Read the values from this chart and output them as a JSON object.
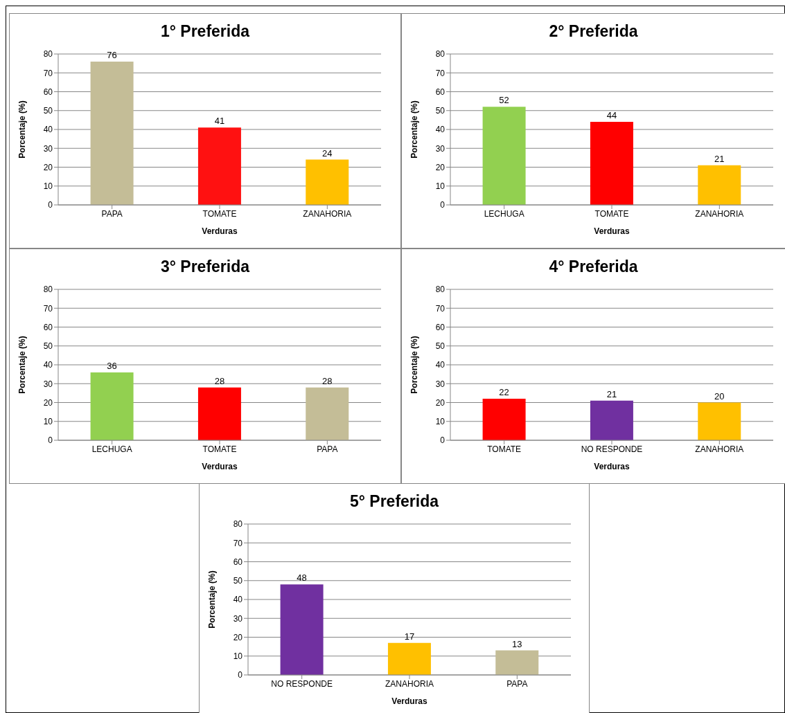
{
  "chart_data": [
    {
      "type": "bar",
      "title": "1° Preferida",
      "xlabel": "Verduras",
      "ylabel": "Porcentaje (%)",
      "categories": [
        "PAPA",
        "TOMATE",
        "ZANAHORIA"
      ],
      "values": [
        76,
        41,
        24
      ],
      "colors": [
        "#c4bd97",
        "#ff1111",
        "#ffc000"
      ],
      "ylim": [
        0,
        80
      ],
      "yticks": [
        0,
        10,
        20,
        30,
        40,
        50,
        60,
        70,
        80
      ],
      "grid": "y",
      "data_labels": true
    },
    {
      "type": "bar",
      "title": "2° Preferida",
      "xlabel": "Verduras",
      "ylabel": "Porcentaje (%)",
      "categories": [
        "LECHUGA",
        "TOMATE",
        "ZANAHORIA"
      ],
      "values": [
        52,
        44,
        21
      ],
      "colors": [
        "#92d050",
        "#ff0000",
        "#ffc000"
      ],
      "ylim": [
        0,
        80
      ],
      "yticks": [
        0,
        10,
        20,
        30,
        40,
        50,
        60,
        70,
        80
      ],
      "grid": "y",
      "data_labels": true
    },
    {
      "type": "bar",
      "title": "3° Preferida",
      "xlabel": "Verduras",
      "ylabel": "Porcentaje (%)",
      "categories": [
        "LECHUGA",
        "TOMATE",
        "PAPA"
      ],
      "values": [
        36,
        28,
        28
      ],
      "colors": [
        "#92d050",
        "#ff0000",
        "#c4bd97"
      ],
      "ylim": [
        0,
        80
      ],
      "yticks": [
        0,
        10,
        20,
        30,
        40,
        50,
        60,
        70,
        80
      ],
      "grid": "y",
      "data_labels": true
    },
    {
      "type": "bar",
      "title": "4° Preferida",
      "xlabel": "Verduras",
      "ylabel": "Porcentaje (%)",
      "categories": [
        "TOMATE",
        "NO RESPONDE",
        "ZANAHORIA"
      ],
      "values": [
        22,
        21,
        20
      ],
      "colors": [
        "#ff0000",
        "#7030a0",
        "#ffc000"
      ],
      "ylim": [
        0,
        80
      ],
      "yticks": [
        0,
        10,
        20,
        30,
        40,
        50,
        60,
        70,
        80
      ],
      "grid": "y",
      "data_labels": true
    },
    {
      "type": "bar",
      "title": "5° Preferida",
      "xlabel": "Verduras",
      "ylabel": "Porcentaje (%)",
      "categories": [
        "NO RESPONDE",
        "ZANAHORIA",
        "PAPA"
      ],
      "values": [
        48,
        17,
        13
      ],
      "colors": [
        "#7030a0",
        "#ffc000",
        "#c4bd97"
      ],
      "ylim": [
        0,
        80
      ],
      "yticks": [
        0,
        10,
        20,
        30,
        40,
        50,
        60,
        70,
        80
      ],
      "grid": "y",
      "data_labels": true
    }
  ]
}
